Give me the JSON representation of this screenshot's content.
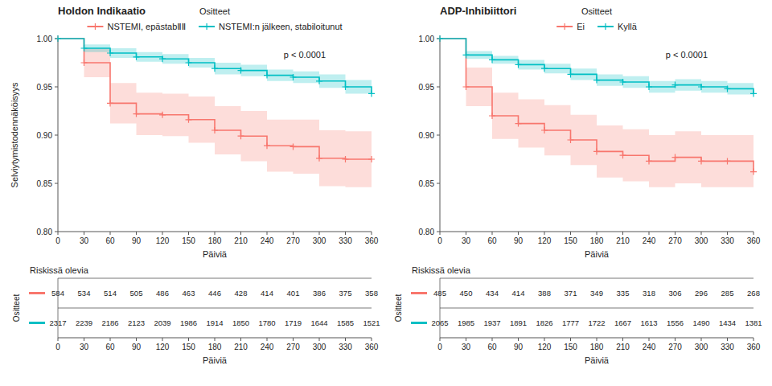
{
  "chart_data": [
    {
      "type": "step",
      "title": "Holdon Indikaatio",
      "xlabel": "Päiviä",
      "ylabel": "Selviytymistodennäköisyys",
      "x": [
        0,
        30,
        60,
        90,
        120,
        150,
        180,
        210,
        240,
        270,
        300,
        330,
        360
      ],
      "xlim": [
        0,
        360
      ],
      "xticks": [
        0,
        30,
        60,
        90,
        120,
        150,
        180,
        210,
        240,
        270,
        300,
        330,
        360
      ],
      "ylim": [
        0.8,
        1.0
      ],
      "yticks": [
        {
          "value": 0.8,
          "label": "0.80"
        },
        0.85,
        {
          "value": 0.9,
          "label": "0.90"
        },
        0.95,
        {
          "value": 1.0,
          "label": "1.00"
        }
      ],
      "legend": "top",
      "legend_title": "Ositteet",
      "marker": "plus",
      "annotation": "p < 0.0001",
      "risk_title": "Riskissä olevia",
      "risk_label": "Ositteet",
      "series": [
        {
          "name": "NSTEMI, epästabⅡⅡ",
          "color": "#F8766D",
          "values": [
            1.0,
            0.975,
            0.933,
            0.922,
            0.921,
            0.916,
            0.905,
            0.899,
            0.889,
            0.888,
            0.876,
            0.875,
            0.875
          ],
          "upper": [
            1.0,
            0.99,
            0.954,
            0.944,
            0.943,
            0.94,
            0.93,
            0.925,
            0.916,
            0.916,
            0.905,
            0.904,
            0.904
          ],
          "lower": [
            1.0,
            0.96,
            0.912,
            0.9,
            0.899,
            0.892,
            0.88,
            0.873,
            0.862,
            0.86,
            0.847,
            0.846,
            0.846
          ],
          "at_risk": [
            584,
            534,
            514,
            505,
            486,
            463,
            446,
            428,
            414,
            401,
            386,
            375,
            358
          ]
        },
        {
          "name": "NSTEMI:n jälkeen, stabiloitunut",
          "color": "#00BFC4",
          "values": [
            1.0,
            0.99,
            0.985,
            0.981,
            0.979,
            0.975,
            0.969,
            0.967,
            0.962,
            0.96,
            0.956,
            0.95,
            0.943
          ],
          "upper": [
            1.0,
            0.994,
            0.99,
            0.986,
            0.984,
            0.98,
            0.975,
            0.973,
            0.968,
            0.966,
            0.963,
            0.957,
            0.95
          ],
          "lower": [
            1.0,
            0.986,
            0.98,
            0.976,
            0.974,
            0.97,
            0.963,
            0.961,
            0.956,
            0.954,
            0.949,
            0.943,
            0.936
          ],
          "at_risk": [
            2317,
            2239,
            2186,
            2123,
            2039,
            1986,
            1914,
            1850,
            1780,
            1719,
            1644,
            1585,
            1521
          ]
        }
      ]
    },
    {
      "type": "step",
      "title": "ADP-Inhibiittori",
      "xlabel": "Päiviä",
      "x": [
        0,
        30,
        60,
        90,
        120,
        150,
        180,
        210,
        240,
        270,
        300,
        330,
        360
      ],
      "xlim": [
        0,
        360
      ],
      "xticks": [
        0,
        30,
        60,
        90,
        120,
        150,
        180,
        210,
        240,
        270,
        300,
        330,
        360
      ],
      "ylim": [
        0.8,
        1.0
      ],
      "yticks": [
        {
          "value": 0.8,
          "label": "0.80"
        },
        0.85,
        {
          "value": 0.9,
          "label": "0.90"
        },
        0.95,
        {
          "value": 1.0,
          "label": "1.00"
        }
      ],
      "legend": "top",
      "legend_title": "Ositteet",
      "marker": "plus",
      "annotation": "p < 0.0001",
      "risk_title": "Riskissä olevia",
      "risk_label": "Ositteet",
      "series": [
        {
          "name": "Ei",
          "color": "#F8766D",
          "values": [
            1.0,
            0.95,
            0.92,
            0.912,
            0.905,
            0.895,
            0.883,
            0.879,
            0.873,
            0.877,
            0.873,
            0.873,
            0.862
          ],
          "upper": [
            1.0,
            0.97,
            0.944,
            0.937,
            0.931,
            0.921,
            0.91,
            0.906,
            0.9,
            0.904,
            0.9,
            0.9,
            0.89
          ],
          "lower": [
            1.0,
            0.93,
            0.896,
            0.887,
            0.879,
            0.869,
            0.856,
            0.852,
            0.846,
            0.85,
            0.846,
            0.846,
            0.834
          ],
          "at_risk": [
            485,
            450,
            434,
            414,
            388,
            371,
            349,
            335,
            318,
            306,
            296,
            285,
            268
          ]
        },
        {
          "name": "Kyllä",
          "color": "#00BFC4",
          "values": [
            1.0,
            0.983,
            0.978,
            0.973,
            0.969,
            0.963,
            0.957,
            0.955,
            0.95,
            0.952,
            0.95,
            0.948,
            0.943
          ],
          "upper": [
            1.0,
            0.987,
            0.982,
            0.978,
            0.974,
            0.969,
            0.963,
            0.961,
            0.956,
            0.958,
            0.956,
            0.954,
            0.949
          ],
          "lower": [
            1.0,
            0.979,
            0.974,
            0.968,
            0.964,
            0.957,
            0.951,
            0.949,
            0.944,
            0.946,
            0.944,
            0.942,
            0.937
          ],
          "at_risk": [
            2065,
            1985,
            1937,
            1891,
            1826,
            1777,
            1722,
            1667,
            1613,
            1556,
            1490,
            1434,
            1381
          ]
        }
      ]
    }
  ]
}
